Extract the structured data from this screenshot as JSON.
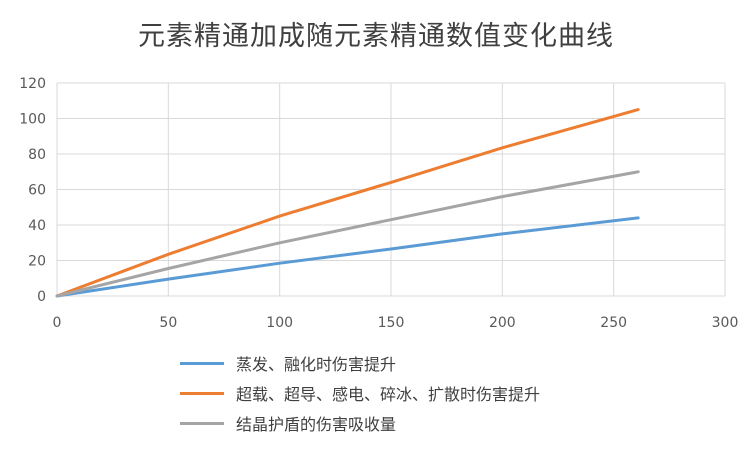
{
  "chart_data": {
    "type": "line",
    "title": "元素精通加成随元素精通数值变化曲线",
    "xlabel": "",
    "ylabel": "",
    "xlim": [
      0,
      300
    ],
    "ylim": [
      0,
      120
    ],
    "xticks": [
      "0",
      "50",
      "100",
      "150",
      "200",
      "250",
      "300"
    ],
    "yticks": [
      "0",
      "20",
      "40",
      "60",
      "80",
      "100",
      "120"
    ],
    "grid": true,
    "legend_position": "bottom",
    "series": [
      {
        "name": "蒸发、融化时伤害提升",
        "color": "#5b9bd5",
        "x": [
          0,
          50,
          100,
          150,
          200,
          261
        ],
        "y": [
          0,
          9.5,
          18.5,
          26.5,
          35,
          44
        ]
      },
      {
        "name": "超载、超导、感电、碎冰、扩散时伤害提升",
        "color": "#ed7d31",
        "x": [
          0,
          50,
          100,
          150,
          200,
          261
        ],
        "y": [
          0,
          23.5,
          45,
          64,
          83.5,
          105
        ]
      },
      {
        "name": "结晶护盾的伤害吸收量",
        "color": "#a5a5a5",
        "x": [
          0,
          50,
          100,
          150,
          200,
          261
        ],
        "y": [
          0,
          15.5,
          30,
          43,
          56,
          70
        ]
      }
    ]
  }
}
